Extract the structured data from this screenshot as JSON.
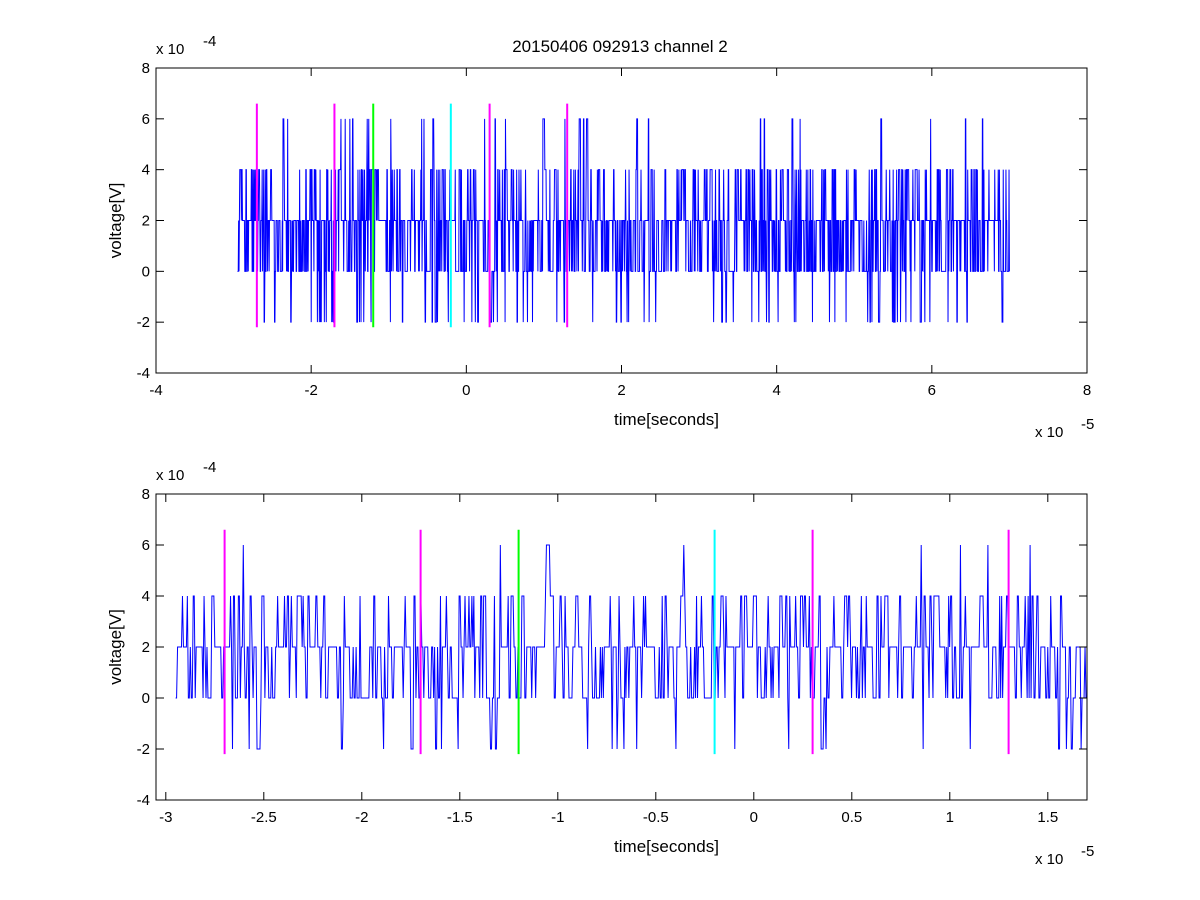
{
  "figure": {
    "title": "20150406 092913 channel 2"
  },
  "colors": {
    "signal": "#0000ff",
    "magenta": "#ff00ff",
    "green": "#00ff00",
    "cyan": "#00ffff",
    "axis": "#000000"
  },
  "chart_data": [
    {
      "type": "line",
      "title": "20150406 092913 channel 2",
      "xlabel": "time[seconds]",
      "ylabel": "voltage[V]",
      "x_multiplier": "x 10",
      "x_exponent": "-5",
      "y_multiplier": "x 10",
      "y_exponent": "-4",
      "x_unit_scale": 1e-05,
      "y_unit_scale": 0.0001,
      "xlim": [
        -4,
        8
      ],
      "ylim": [
        -4,
        8
      ],
      "xticks": [
        -4,
        -2,
        0,
        2,
        4,
        6,
        8
      ],
      "xtick_labels": [
        "-4",
        "-2",
        "0",
        "2",
        "4",
        "6",
        "8"
      ],
      "yticks": [
        -4,
        -2,
        0,
        2,
        4,
        6,
        8
      ],
      "ytick_labels": [
        "-4",
        "-2",
        "0",
        "2",
        "4",
        "6",
        "8"
      ],
      "grid": false,
      "signal": {
        "x_start": -2.95,
        "x_end": 7.0,
        "sample_count": 2000,
        "levels": [
          -2,
          0,
          2,
          4,
          6
        ],
        "level_weights": [
          0.06,
          0.3,
          0.42,
          0.19,
          0.03
        ]
      },
      "markers": [
        {
          "x": -2.7,
          "color": "magenta",
          "y_min": -2.2,
          "y_max": 6.6
        },
        {
          "x": -1.7,
          "color": "magenta",
          "y_min": -2.2,
          "y_max": 6.6
        },
        {
          "x": -1.2,
          "color": "green",
          "y_min": -2.2,
          "y_max": 6.6
        },
        {
          "x": -0.2,
          "color": "cyan",
          "y_min": -2.2,
          "y_max": 6.6
        },
        {
          "x": 0.3,
          "color": "magenta",
          "y_min": -2.2,
          "y_max": 6.6
        },
        {
          "x": 1.3,
          "color": "magenta",
          "y_min": -2.2,
          "y_max": 6.6
        }
      ]
    },
    {
      "type": "line",
      "title": "",
      "xlabel": "time[seconds]",
      "ylabel": "voltage[V]",
      "x_multiplier": "x 10",
      "x_exponent": "-5",
      "y_multiplier": "x 10",
      "y_exponent": "-4",
      "x_unit_scale": 1e-05,
      "y_unit_scale": 0.0001,
      "xlim": [
        -3.05,
        1.7
      ],
      "ylim": [
        -4,
        8
      ],
      "xticks": [
        -3,
        -2.5,
        -2,
        -1.5,
        -1,
        -0.5,
        0,
        0.5,
        1,
        1.5
      ],
      "xtick_labels": [
        "-3",
        "-2.5",
        "-2",
        "-1.5",
        "-1",
        "-0.5",
        "0",
        "0.5",
        "1",
        "1.5"
      ],
      "yticks": [
        -4,
        -2,
        0,
        2,
        4,
        6,
        8
      ],
      "ytick_labels": [
        "-4",
        "-2",
        "0",
        "2",
        "4",
        "6",
        "8"
      ],
      "grid": false,
      "signal": {
        "x_start": -2.95,
        "x_end": 1.7,
        "sample_count": 930,
        "levels": [
          -2,
          0,
          2,
          4,
          6
        ],
        "level_weights": [
          0.05,
          0.3,
          0.45,
          0.19,
          0.01
        ]
      },
      "markers": [
        {
          "x": -2.7,
          "color": "magenta",
          "y_min": -2.2,
          "y_max": 6.6
        },
        {
          "x": -1.7,
          "color": "magenta",
          "y_min": -2.2,
          "y_max": 6.6
        },
        {
          "x": -1.2,
          "color": "green",
          "y_min": -2.2,
          "y_max": 6.6
        },
        {
          "x": -0.2,
          "color": "cyan",
          "y_min": -2.2,
          "y_max": 6.6
        },
        {
          "x": 0.3,
          "color": "magenta",
          "y_min": -2.2,
          "y_max": 6.6
        },
        {
          "x": 1.3,
          "color": "magenta",
          "y_min": -2.2,
          "y_max": 6.6
        }
      ]
    }
  ]
}
